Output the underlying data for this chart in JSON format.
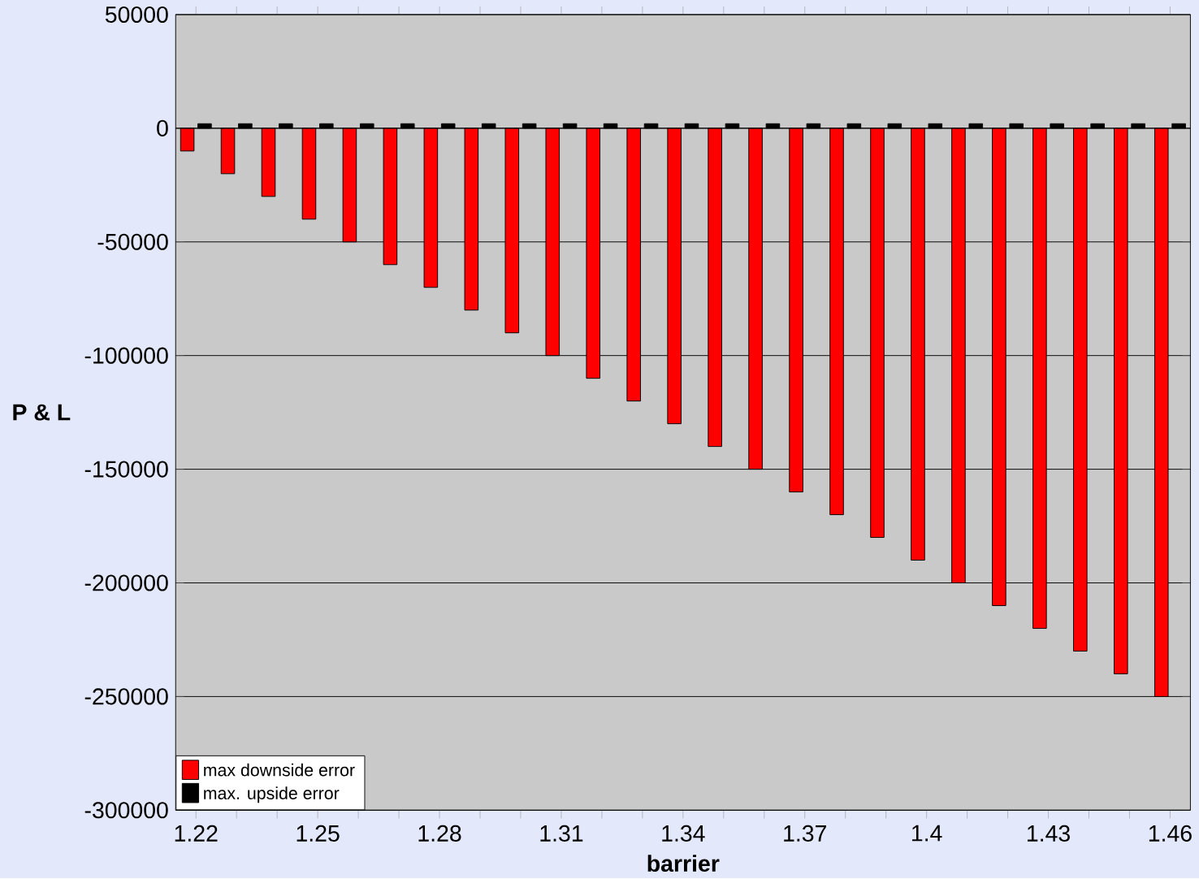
{
  "chart_data": {
    "type": "bar",
    "xlabel": "barrier",
    "ylabel": "P & L",
    "categories": [
      "1.22",
      null,
      null,
      "1.25",
      null,
      null,
      "1.28",
      null,
      null,
      "1.31",
      null,
      null,
      "1.34",
      null,
      null,
      "1.37",
      null,
      null,
      "1.4",
      null,
      null,
      "1.43",
      null,
      null,
      "1.46"
    ],
    "series": [
      {
        "name": "max downside error",
        "color": "#ff0000",
        "values": [
          -10000,
          -20000,
          -30000,
          -40000,
          -50000,
          -60000,
          -70000,
          -80000,
          -90000,
          -100000,
          -110000,
          -120000,
          -130000,
          -140000,
          -150000,
          -160000,
          -170000,
          -180000,
          -190000,
          -200000,
          -210000,
          -220000,
          -230000,
          -240000,
          -250000
        ]
      },
      {
        "name": "max. upside error",
        "color": "#000000",
        "values": [
          2000,
          2000,
          2000,
          2000,
          2000,
          2000,
          2000,
          2000,
          2000,
          2000,
          2000,
          2000,
          2000,
          2000,
          2000,
          2000,
          2000,
          2000,
          2000,
          2000,
          2000,
          2000,
          2000,
          2000,
          2000
        ]
      }
    ],
    "ylim": [
      -300000,
      50000
    ],
    "yticks": [
      -300000,
      -250000,
      -200000,
      -150000,
      -100000,
      -50000,
      0,
      50000
    ],
    "grid": "y",
    "legend": "bottom left"
  }
}
